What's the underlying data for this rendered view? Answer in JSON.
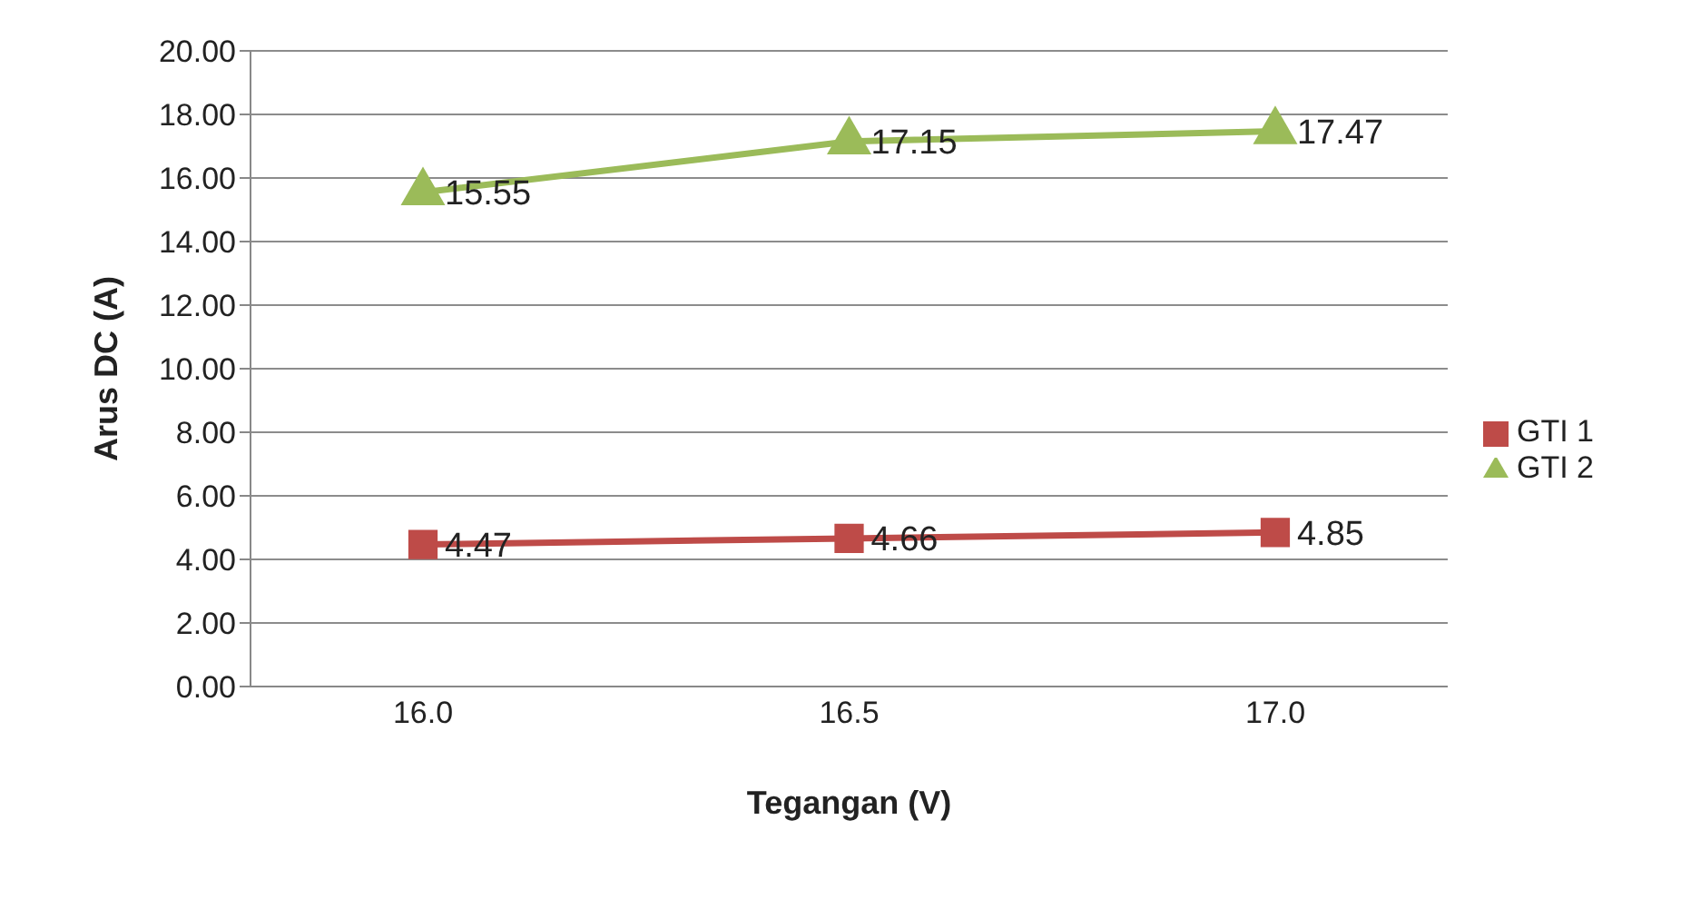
{
  "chart_data": {
    "type": "line",
    "xlabel": "Tegangan (V)",
    "ylabel": "Arus DC (A)",
    "categories": [
      "16.0",
      "16.5",
      "17.0"
    ],
    "series": [
      {
        "name": "GTI 1",
        "color": "#be4b48",
        "marker": "square",
        "values": [
          4.47,
          4.66,
          4.85
        ]
      },
      {
        "name": "GTI 2",
        "color": "#9bbb59",
        "marker": "triangle",
        "values": [
          15.55,
          17.15,
          17.47
        ]
      }
    ],
    "ylim": [
      0,
      20
    ],
    "yticks": [
      {
        "value": 0,
        "label": "0.00"
      },
      {
        "value": 2,
        "label": "2.00"
      },
      {
        "value": 4,
        "label": "4.00"
      },
      {
        "value": 6,
        "label": "6.00"
      },
      {
        "value": 8,
        "label": "8.00"
      },
      {
        "value": 10,
        "label": "10.00"
      },
      {
        "value": 12,
        "label": "12.00"
      },
      {
        "value": 14,
        "label": "14.00"
      },
      {
        "value": 16,
        "label": "16.00"
      },
      {
        "value": 18,
        "label": "18.00"
      },
      {
        "value": 20,
        "label": "20.00"
      }
    ],
    "grid": "y",
    "legend": "right",
    "data_labels": true,
    "line_style": "solid"
  }
}
